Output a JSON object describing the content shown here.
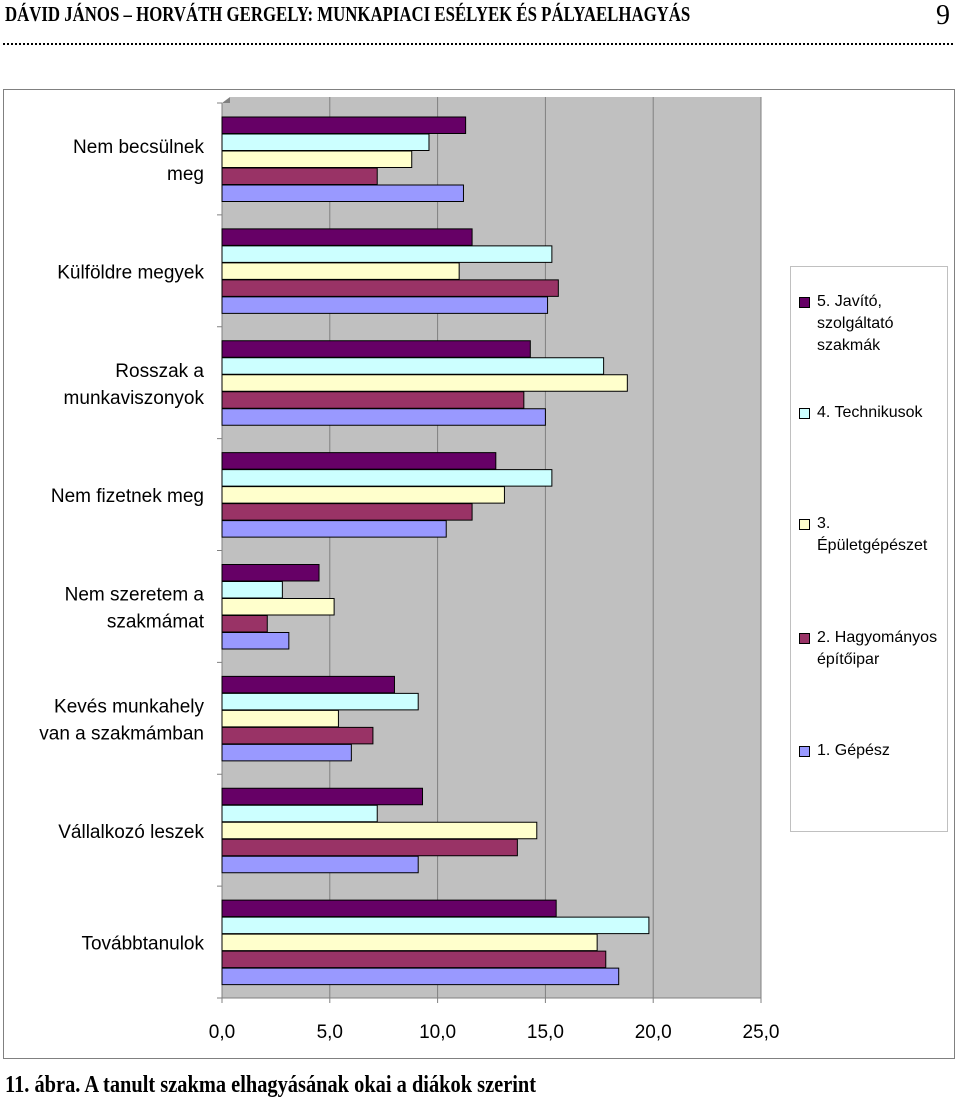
{
  "header": {
    "title": "DÁVID JÁNOS – HORVÁTH GERGELY: MUNKAPIACI ESÉLYEK ÉS PÁLYAELHAGYÁS",
    "page_number": "9"
  },
  "caption": "11. ábra. A tanult szakma elhagyásának okai a diákok szerint",
  "colors": {
    "plot_background": "#c0c0c0",
    "gridline": "#808080",
    "series": [
      "#660066",
      "#ccffff",
      "#ffffcc",
      "#993366",
      "#9999ff"
    ]
  },
  "chart_data": {
    "type": "bar",
    "orientation": "horizontal",
    "categories": [
      [
        "Nem becsülnek",
        "meg"
      ],
      [
        "Külföldre megyek"
      ],
      [
        "Rosszak a",
        "munkaviszonyok"
      ],
      [
        "Nem fizetnek meg"
      ],
      [
        "Nem szeretem a",
        "szakmámat"
      ],
      [
        "Kevés munkahely",
        "van a szakmámban"
      ],
      [
        "Vállalkozó leszek"
      ],
      [
        "Továbbtanulok"
      ]
    ],
    "series": [
      {
        "name": "5. Javító, szolgáltató szakmák",
        "legend_lines": [
          "5. Javító,",
          "szolgáltató",
          "szakmák"
        ],
        "values": [
          11.3,
          11.6,
          14.3,
          12.7,
          4.5,
          8.0,
          9.3,
          15.5
        ]
      },
      {
        "name": "4. Technikusok",
        "legend_lines": [
          "4. Technikusok"
        ],
        "values": [
          9.6,
          15.3,
          17.7,
          15.3,
          2.8,
          9.1,
          7.2,
          19.8
        ]
      },
      {
        "name": "3. Épületgépészet",
        "legend_lines": [
          "3.",
          "Épületgépészet"
        ],
        "values": [
          8.8,
          11.0,
          18.8,
          13.1,
          5.2,
          5.4,
          14.6,
          17.4
        ]
      },
      {
        "name": "2. Hagyományos építőipar",
        "legend_lines": [
          "2. Hagyományos",
          "építőipar"
        ],
        "values": [
          7.2,
          15.6,
          14.0,
          11.6,
          2.1,
          7.0,
          13.7,
          17.8
        ]
      },
      {
        "name": "1. Gépész",
        "legend_lines": [
          "1. Gépész"
        ],
        "values": [
          11.2,
          15.1,
          15.0,
          10.4,
          3.1,
          6.0,
          9.1,
          18.4
        ]
      }
    ],
    "xlim": [
      0,
      25
    ],
    "xticks": [
      0,
      5,
      10,
      15,
      20,
      25
    ],
    "xtick_labels": [
      "0,0",
      "5,0",
      "10,0",
      "15,0",
      "20,0",
      "25,0"
    ],
    "grid": true,
    "legend_position": "right",
    "title": "",
    "xlabel": "",
    "ylabel": ""
  }
}
